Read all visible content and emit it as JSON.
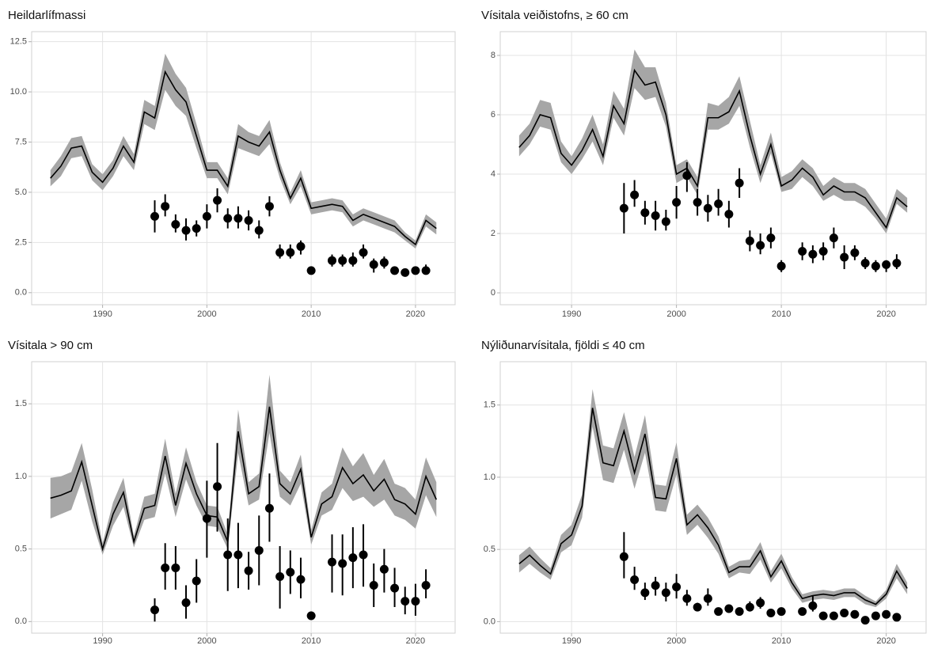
{
  "chart_data": [
    {
      "type": "line",
      "title": "Heildarlífmassi",
      "x": [
        1985,
        1986,
        1987,
        1988,
        1989,
        1990,
        1991,
        1992,
        1993,
        1994,
        1995,
        1996,
        1997,
        1998,
        1999,
        2000,
        2001,
        2002,
        2003,
        2004,
        2005,
        2006,
        2007,
        2008,
        2009,
        2010,
        2011,
        2012,
        2013,
        2014,
        2015,
        2016,
        2017,
        2018,
        2019,
        2020,
        2021,
        2022
      ],
      "values": [
        5.7,
        6.3,
        7.2,
        7.3,
        6.0,
        5.5,
        6.2,
        7.3,
        6.5,
        9.0,
        8.7,
        11.0,
        10.1,
        9.5,
        7.8,
        6.1,
        6.1,
        5.3,
        7.8,
        7.5,
        7.3,
        8.0,
        6.1,
        4.7,
        5.7,
        4.2,
        4.3,
        4.4,
        4.3,
        3.6,
        3.9,
        3.7,
        3.5,
        3.3,
        2.8,
        2.4,
        3.6,
        3.2
      ],
      "band_lower": [
        5.3,
        5.8,
        6.7,
        6.8,
        5.6,
        5.1,
        5.8,
        6.8,
        6.1,
        8.4,
        8.1,
        10.1,
        9.3,
        8.8,
        7.2,
        5.7,
        5.7,
        4.9,
        7.2,
        7.0,
        6.8,
        7.4,
        5.7,
        4.4,
        5.3,
        3.9,
        4.0,
        4.1,
        4.0,
        3.3,
        3.6,
        3.4,
        3.2,
        3.0,
        2.6,
        2.2,
        3.3,
        2.9
      ],
      "band_upper": [
        6.1,
        6.8,
        7.7,
        7.8,
        6.4,
        5.9,
        6.6,
        7.8,
        6.9,
        9.6,
        9.3,
        11.9,
        10.9,
        10.2,
        8.4,
        6.5,
        6.5,
        5.7,
        8.4,
        8.0,
        7.8,
        8.6,
        6.5,
        5.0,
        6.1,
        4.5,
        4.6,
        4.7,
        4.6,
        3.9,
        4.2,
        4.0,
        3.8,
        3.6,
        3.0,
        2.6,
        3.9,
        3.5
      ],
      "points_x": [
        1995,
        1996,
        1997,
        1998,
        1999,
        2000,
        2001,
        2002,
        2003,
        2004,
        2005,
        2006,
        2007,
        2008,
        2009,
        2010,
        2012,
        2013,
        2014,
        2015,
        2016,
        2017,
        2018,
        2019,
        2020,
        2021
      ],
      "points": [
        3.8,
        4.3,
        3.4,
        3.1,
        3.2,
        3.8,
        4.6,
        3.7,
        3.7,
        3.6,
        3.1,
        4.3,
        2.0,
        2.0,
        2.3,
        1.1,
        1.6,
        1.6,
        1.6,
        2.0,
        1.4,
        1.5,
        1.1,
        1.0,
        1.1,
        1.1
      ],
      "points_lower": [
        3.0,
        3.8,
        3.0,
        2.6,
        2.8,
        3.2,
        4.0,
        3.2,
        3.2,
        3.1,
        2.7,
        3.8,
        1.7,
        1.7,
        1.9,
        0.9,
        1.3,
        1.3,
        1.3,
        1.7,
        1.0,
        1.2,
        0.9,
        0.9,
        0.9,
        0.9
      ],
      "points_upper": [
        4.6,
        4.9,
        3.9,
        3.7,
        3.6,
        4.4,
        5.2,
        4.2,
        4.3,
        4.1,
        3.6,
        4.8,
        2.4,
        2.4,
        2.6,
        1.3,
        1.9,
        1.9,
        2.0,
        2.4,
        1.7,
        1.8,
        1.3,
        1.2,
        1.3,
        1.4
      ],
      "line_color": "#000000",
      "band_color": "#a6a6a6",
      "point_color": "#000000",
      "xlim": [
        1983.2,
        2023.8
      ],
      "xticks": [
        1990,
        2000,
        2010,
        2020
      ],
      "ylim": [
        -0.6,
        13.0
      ],
      "yticks": [
        {
          "value": 0,
          "label": "0.0"
        },
        2.5,
        {
          "value": 5,
          "label": "5.0"
        },
        7.5,
        {
          "value": 10,
          "label": "10.0"
        },
        12.5
      ],
      "grid": true
    },
    {
      "type": "line",
      "title": "Vísitala veiðistofns,  ≥ 60 cm",
      "x": [
        1985,
        1986,
        1987,
        1988,
        1989,
        1990,
        1991,
        1992,
        1993,
        1994,
        1995,
        1996,
        1997,
        1998,
        1999,
        2000,
        2001,
        2002,
        2003,
        2004,
        2005,
        2006,
        2007,
        2008,
        2009,
        2010,
        2011,
        2012,
        2013,
        2014,
        2015,
        2016,
        2017,
        2018,
        2019,
        2020,
        2021,
        2022
      ],
      "values": [
        4.9,
        5.3,
        6.0,
        5.9,
        4.7,
        4.3,
        4.8,
        5.5,
        4.6,
        6.3,
        5.7,
        7.5,
        7.0,
        7.1,
        6.0,
        4.0,
        4.2,
        3.6,
        5.9,
        5.9,
        6.1,
        6.8,
        5.3,
        4.0,
        5.0,
        3.6,
        3.8,
        4.2,
        3.9,
        3.3,
        3.6,
        3.4,
        3.4,
        3.2,
        2.7,
        2.2,
        3.2,
        2.9
      ],
      "band_lower": [
        4.6,
        5.0,
        5.6,
        5.5,
        4.4,
        4.0,
        4.5,
        5.1,
        4.3,
        5.9,
        5.3,
        6.9,
        6.5,
        6.6,
        5.6,
        3.7,
        3.9,
        3.3,
        5.5,
        5.5,
        5.7,
        6.3,
        4.9,
        3.7,
        4.7,
        3.4,
        3.5,
        3.9,
        3.6,
        3.1,
        3.3,
        3.1,
        3.1,
        2.9,
        2.5,
        2.0,
        3.0,
        2.7
      ],
      "band_upper": [
        5.3,
        5.7,
        6.5,
        6.4,
        5.1,
        4.6,
        5.2,
        6.0,
        5.0,
        6.8,
        6.2,
        8.2,
        7.6,
        7.6,
        6.4,
        4.3,
        4.5,
        3.9,
        6.4,
        6.3,
        6.6,
        7.3,
        5.8,
        4.3,
        5.4,
        3.9,
        4.1,
        4.5,
        4.2,
        3.6,
        3.9,
        3.7,
        3.7,
        3.5,
        3.0,
        2.5,
        3.5,
        3.2
      ],
      "points_x": [
        1995,
        1996,
        1997,
        1998,
        1999,
        2000,
        2001,
        2002,
        2003,
        2004,
        2005,
        2006,
        2007,
        2008,
        2009,
        2010,
        2012,
        2013,
        2014,
        2015,
        2016,
        2017,
        2018,
        2019,
        2020,
        2021
      ],
      "points": [
        2.85,
        3.3,
        2.7,
        2.6,
        2.4,
        3.05,
        3.95,
        3.05,
        2.85,
        3.0,
        2.65,
        3.7,
        1.75,
        1.6,
        1.85,
        0.9,
        1.4,
        1.3,
        1.4,
        1.85,
        1.2,
        1.35,
        1.0,
        0.9,
        0.95,
        1.0
      ],
      "points_lower": [
        2.0,
        2.9,
        2.3,
        2.1,
        2.1,
        2.5,
        3.4,
        2.6,
        2.4,
        2.6,
        2.2,
        3.2,
        1.4,
        1.3,
        1.5,
        0.7,
        1.1,
        1.0,
        1.1,
        1.5,
        0.8,
        1.1,
        0.8,
        0.7,
        0.7,
        0.8
      ],
      "points_upper": [
        3.7,
        3.8,
        3.1,
        3.1,
        2.8,
        3.6,
        4.4,
        3.5,
        3.3,
        3.5,
        3.1,
        4.2,
        2.1,
        2.0,
        2.2,
        1.1,
        1.7,
        1.6,
        1.7,
        2.2,
        1.6,
        1.6,
        1.2,
        1.1,
        1.1,
        1.3
      ],
      "line_color": "#000000",
      "band_color": "#a6a6a6",
      "point_color": "#000000",
      "xlim": [
        1983.2,
        2023.8
      ],
      "xticks": [
        1990,
        2000,
        2010,
        2020
      ],
      "ylim": [
        -0.4,
        8.8
      ],
      "yticks": [
        0,
        2,
        4,
        6,
        8
      ],
      "grid": true
    },
    {
      "type": "line",
      "title": "Vísitala > 90 cm",
      "x": [
        1985,
        1986,
        1987,
        1988,
        1989,
        1990,
        1991,
        1992,
        1993,
        1994,
        1995,
        1996,
        1997,
        1998,
        1999,
        2000,
        2001,
        2002,
        2003,
        2004,
        2005,
        2006,
        2007,
        2008,
        2009,
        2010,
        2011,
        2012,
        2013,
        2014,
        2015,
        2016,
        2017,
        2018,
        2019,
        2020,
        2021,
        2022
      ],
      "values": [
        0.85,
        0.87,
        0.9,
        1.1,
        0.8,
        0.5,
        0.74,
        0.89,
        0.55,
        0.78,
        0.8,
        1.14,
        0.8,
        1.09,
        0.88,
        0.73,
        0.72,
        0.55,
        1.31,
        0.88,
        0.93,
        1.48,
        0.95,
        0.88,
        1.05,
        0.58,
        0.81,
        0.86,
        1.06,
        0.95,
        1.01,
        0.9,
        0.98,
        0.84,
        0.81,
        0.74,
        1.0,
        0.84
      ],
      "band_lower": [
        0.71,
        0.74,
        0.77,
        0.97,
        0.69,
        0.46,
        0.66,
        0.79,
        0.51,
        0.7,
        0.72,
        1.02,
        0.72,
        0.98,
        0.8,
        0.66,
        0.65,
        0.5,
        1.16,
        0.8,
        0.84,
        1.3,
        0.86,
        0.8,
        0.95,
        0.53,
        0.73,
        0.77,
        0.92,
        0.83,
        0.86,
        0.79,
        0.84,
        0.73,
        0.7,
        0.64,
        0.87,
        0.72
      ],
      "band_upper": [
        0.99,
        1.0,
        1.03,
        1.23,
        0.91,
        0.54,
        0.82,
        0.99,
        0.59,
        0.86,
        0.88,
        1.26,
        0.88,
        1.2,
        0.96,
        0.8,
        0.79,
        0.6,
        1.46,
        0.96,
        1.02,
        1.7,
        1.04,
        0.96,
        1.15,
        0.63,
        0.89,
        0.95,
        1.2,
        1.07,
        1.16,
        1.01,
        1.12,
        0.95,
        0.92,
        0.84,
        1.13,
        0.96
      ],
      "points_x": [
        1995,
        1996,
        1997,
        1998,
        1999,
        2000,
        2001,
        2002,
        2003,
        2004,
        2005,
        2006,
        2007,
        2008,
        2009,
        2010,
        2012,
        2013,
        2014,
        2015,
        2016,
        2017,
        2018,
        2019,
        2020,
        2021
      ],
      "points": [
        0.08,
        0.37,
        0.37,
        0.13,
        0.28,
        0.71,
        0.93,
        0.46,
        0.46,
        0.35,
        0.49,
        0.78,
        0.31,
        0.34,
        0.29,
        0.04,
        0.41,
        0.4,
        0.44,
        0.46,
        0.25,
        0.36,
        0.23,
        0.14,
        0.14,
        0.25
      ],
      "points_lower": [
        0.0,
        0.22,
        0.22,
        0.02,
        0.13,
        0.44,
        0.62,
        0.21,
        0.23,
        0.22,
        0.25,
        0.55,
        0.09,
        0.19,
        0.16,
        0.02,
        0.2,
        0.18,
        0.23,
        0.24,
        0.1,
        0.2,
        0.1,
        0.05,
        0.04,
        0.16
      ],
      "points_upper": [
        0.16,
        0.54,
        0.52,
        0.25,
        0.43,
        0.97,
        1.23,
        0.71,
        0.68,
        0.48,
        0.73,
        1.02,
        0.52,
        0.49,
        0.44,
        0.07,
        0.6,
        0.6,
        0.65,
        0.67,
        0.4,
        0.5,
        0.37,
        0.24,
        0.26,
        0.36
      ],
      "line_color": "#000000",
      "band_color": "#a6a6a6",
      "point_color": "#000000",
      "xlim": [
        1983.2,
        2023.8
      ],
      "xticks": [
        1990,
        2000,
        2010,
        2020
      ],
      "ylim": [
        -0.08,
        1.79
      ],
      "yticks": [
        {
          "value": 0,
          "label": "0.0"
        },
        0.5,
        {
          "value": 1,
          "label": "1.0"
        },
        1.5
      ],
      "grid": true
    },
    {
      "type": "line",
      "title": "Nýliðunarvísitala, fjöldi  ≤ 40 cm",
      "x": [
        1985,
        1986,
        1987,
        1988,
        1989,
        1990,
        1991,
        1992,
        1993,
        1994,
        1995,
        1996,
        1997,
        1998,
        1999,
        2000,
        2001,
        2002,
        2003,
        2004,
        2005,
        2006,
        2007,
        2008,
        2009,
        2010,
        2011,
        2012,
        2013,
        2014,
        2015,
        2016,
        2017,
        2018,
        2019,
        2020,
        2021,
        2022
      ],
      "values": [
        0.4,
        0.46,
        0.39,
        0.33,
        0.54,
        0.6,
        0.8,
        1.48,
        1.1,
        1.08,
        1.32,
        1.03,
        1.3,
        0.86,
        0.85,
        1.13,
        0.67,
        0.74,
        0.65,
        0.53,
        0.34,
        0.38,
        0.38,
        0.49,
        0.31,
        0.42,
        0.27,
        0.16,
        0.18,
        0.19,
        0.18,
        0.2,
        0.2,
        0.15,
        0.12,
        0.19,
        0.35,
        0.23
      ],
      "band_lower": [
        0.34,
        0.4,
        0.34,
        0.29,
        0.48,
        0.53,
        0.72,
        1.35,
        0.98,
        0.96,
        1.19,
        0.92,
        1.17,
        0.77,
        0.76,
        1.02,
        0.6,
        0.67,
        0.58,
        0.47,
        0.3,
        0.34,
        0.33,
        0.43,
        0.27,
        0.37,
        0.23,
        0.13,
        0.15,
        0.16,
        0.15,
        0.17,
        0.17,
        0.12,
        0.1,
        0.16,
        0.3,
        0.19
      ],
      "band_upper": [
        0.46,
        0.52,
        0.44,
        0.37,
        0.6,
        0.67,
        0.88,
        1.61,
        1.22,
        1.2,
        1.45,
        1.14,
        1.43,
        0.95,
        0.94,
        1.24,
        0.74,
        0.81,
        0.72,
        0.59,
        0.38,
        0.42,
        0.43,
        0.55,
        0.35,
        0.47,
        0.31,
        0.19,
        0.21,
        0.22,
        0.21,
        0.23,
        0.23,
        0.18,
        0.14,
        0.22,
        0.4,
        0.27
      ],
      "points_x": [
        1995,
        1996,
        1997,
        1998,
        1999,
        2000,
        2001,
        2002,
        2003,
        2004,
        2005,
        2006,
        2007,
        2008,
        2009,
        2010,
        2012,
        2013,
        2014,
        2015,
        2016,
        2017,
        2018,
        2019,
        2020,
        2021
      ],
      "points": [
        0.45,
        0.29,
        0.2,
        0.25,
        0.2,
        0.24,
        0.16,
        0.1,
        0.16,
        0.07,
        0.09,
        0.07,
        0.1,
        0.13,
        0.06,
        0.07,
        0.07,
        0.11,
        0.04,
        0.04,
        0.06,
        0.05,
        0.01,
        0.04,
        0.05,
        0.03
      ],
      "points_lower": [
        0.3,
        0.22,
        0.15,
        0.18,
        0.14,
        0.16,
        0.11,
        0.08,
        0.11,
        0.06,
        0.07,
        0.05,
        0.07,
        0.09,
        0.05,
        0.06,
        0.05,
        0.07,
        0.03,
        0.03,
        0.05,
        0.04,
        0.0,
        0.03,
        0.04,
        0.02
      ],
      "points_upper": [
        0.62,
        0.38,
        0.27,
        0.31,
        0.27,
        0.33,
        0.22,
        0.13,
        0.23,
        0.09,
        0.11,
        0.09,
        0.14,
        0.17,
        0.08,
        0.09,
        0.09,
        0.18,
        0.05,
        0.06,
        0.08,
        0.07,
        0.02,
        0.06,
        0.06,
        0.04
      ],
      "line_color": "#000000",
      "band_color": "#a6a6a6",
      "point_color": "#000000",
      "xlim": [
        1983.2,
        2023.8
      ],
      "xticks": [
        1990,
        2000,
        2010,
        2020
      ],
      "ylim": [
        -0.08,
        1.8
      ],
      "yticks": [
        {
          "value": 0,
          "label": "0.0"
        },
        0.5,
        {
          "value": 1,
          "label": "1.0"
        },
        1.5
      ],
      "grid": true
    }
  ]
}
